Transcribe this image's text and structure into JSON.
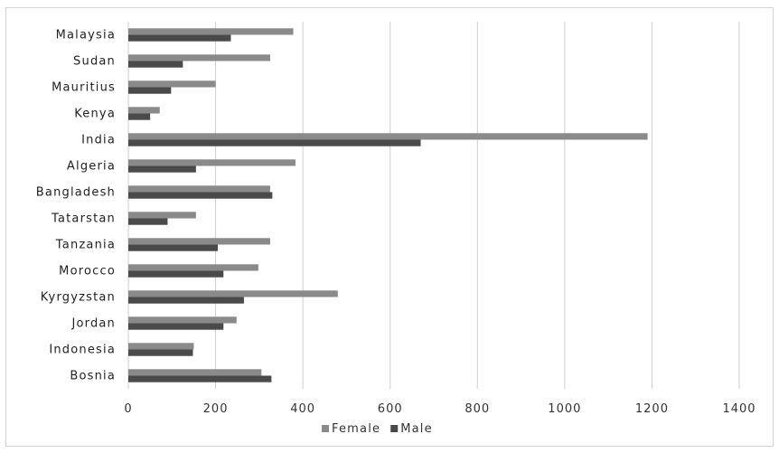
{
  "chart_data": {
    "type": "bar",
    "orientation": "horizontal",
    "categories": [
      "Malaysia",
      "Sudan",
      "Mauritius",
      "Kenya",
      "India",
      "Algeria",
      "Bangladesh",
      "Tatarstan",
      "Tanzania",
      "Morocco",
      "Kyrgyzstan",
      "Jordan",
      "Indonesia",
      "Bosnia"
    ],
    "series": [
      {
        "name": "Female",
        "color": "#8a8a8a",
        "values": [
          378,
          325,
          200,
          72,
          1190,
          383,
          325,
          155,
          325,
          298,
          480,
          248,
          150,
          305
        ]
      },
      {
        "name": "Male",
        "color": "#4a4a4a",
        "values": [
          235,
          125,
          98,
          50,
          670,
          155,
          330,
          90,
          205,
          218,
          265,
          218,
          148,
          328
        ]
      }
    ],
    "xlim": [
      0,
      1400
    ],
    "x_ticks": [
      "0",
      "200",
      "400",
      "600",
      "800",
      "1000",
      "1200",
      "1400"
    ],
    "grid": "vertical",
    "legend_position": "bottom"
  }
}
